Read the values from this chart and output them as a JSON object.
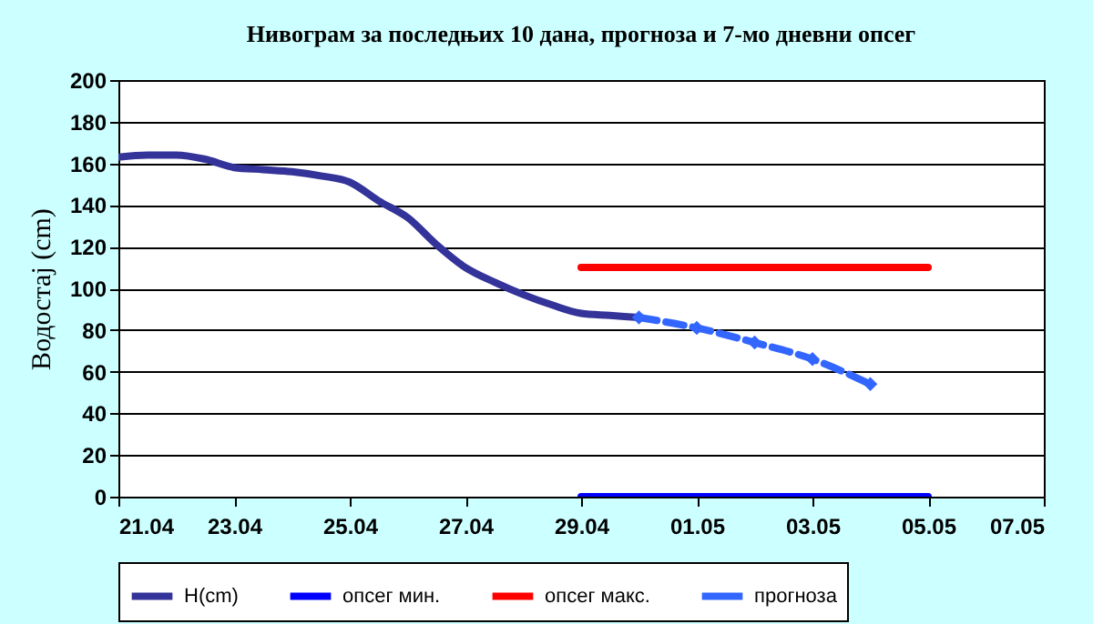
{
  "chart_data": {
    "type": "line",
    "title": "Нивограм за последњих 10 дана, прогноза и 7-мо дневни опсег",
    "ylabel": "Водостај (cm)",
    "ylim": [
      0,
      200
    ],
    "yticks": [
      0,
      20,
      40,
      60,
      80,
      100,
      120,
      140,
      160,
      180,
      200
    ],
    "xlim": [
      "--04-21",
      "--05-07"
    ],
    "xticks": [
      {
        "value": "--04-21",
        "label": "21.04"
      },
      {
        "value": "--04-23",
        "label": "23.04"
      },
      {
        "value": "--04-25",
        "label": "25.04"
      },
      {
        "value": "--04-27",
        "label": "27.04"
      },
      {
        "value": "--04-29",
        "label": "29.04"
      },
      {
        "value": "--05-01",
        "label": "01.05"
      },
      {
        "value": "--05-03",
        "label": "03.05"
      },
      {
        "value": "--05-05",
        "label": "05.05"
      },
      {
        "value": "--05-07",
        "label": "07.05"
      }
    ],
    "grid": "y",
    "legend": "bottom",
    "series": [
      {
        "name": "H(cm)",
        "color": "#333399",
        "marker": "none",
        "line_style": "solid",
        "x": [
          "--04-21T00:00",
          "--04-21T12:00",
          "--04-22T00:00",
          "--04-22T12:00",
          "--04-23T00:00",
          "--04-23T12:00",
          "--04-24T00:00",
          "--04-24T12:00",
          "--04-25T00:00",
          "--04-25T12:00",
          "--04-26T00:00",
          "--04-26T12:00",
          "--04-27T00:00",
          "--04-27T12:00",
          "--04-28T00:00",
          "--04-28T12:00",
          "--04-29T00:00",
          "--04-29T12:00",
          "--04-30T00:00"
        ],
        "values": [
          163,
          164,
          164,
          162,
          158,
          157,
          156,
          154,
          151,
          142,
          134,
          121,
          110,
          103,
          97,
          92,
          88,
          87,
          86
        ]
      },
      {
        "name": "опсег мин.",
        "color": "#0000ff",
        "marker": "none",
        "line_style": "solid",
        "x": [
          "--04-29",
          "--05-05"
        ],
        "values": [
          0,
          0
        ]
      },
      {
        "name": "опсег макс.",
        "color": "#ff0000",
        "marker": "none",
        "line_style": "solid",
        "x": [
          "--04-29",
          "--05-05"
        ],
        "values": [
          110,
          110
        ]
      },
      {
        "name": "прогноза",
        "color": "#3366ff",
        "marker": "diamond",
        "line_style": "dashed",
        "x": [
          "--04-30",
          "--05-01",
          "--05-02",
          "--05-03",
          "--05-04"
        ],
        "values": [
          86,
          81,
          74,
          66,
          54
        ]
      }
    ]
  }
}
